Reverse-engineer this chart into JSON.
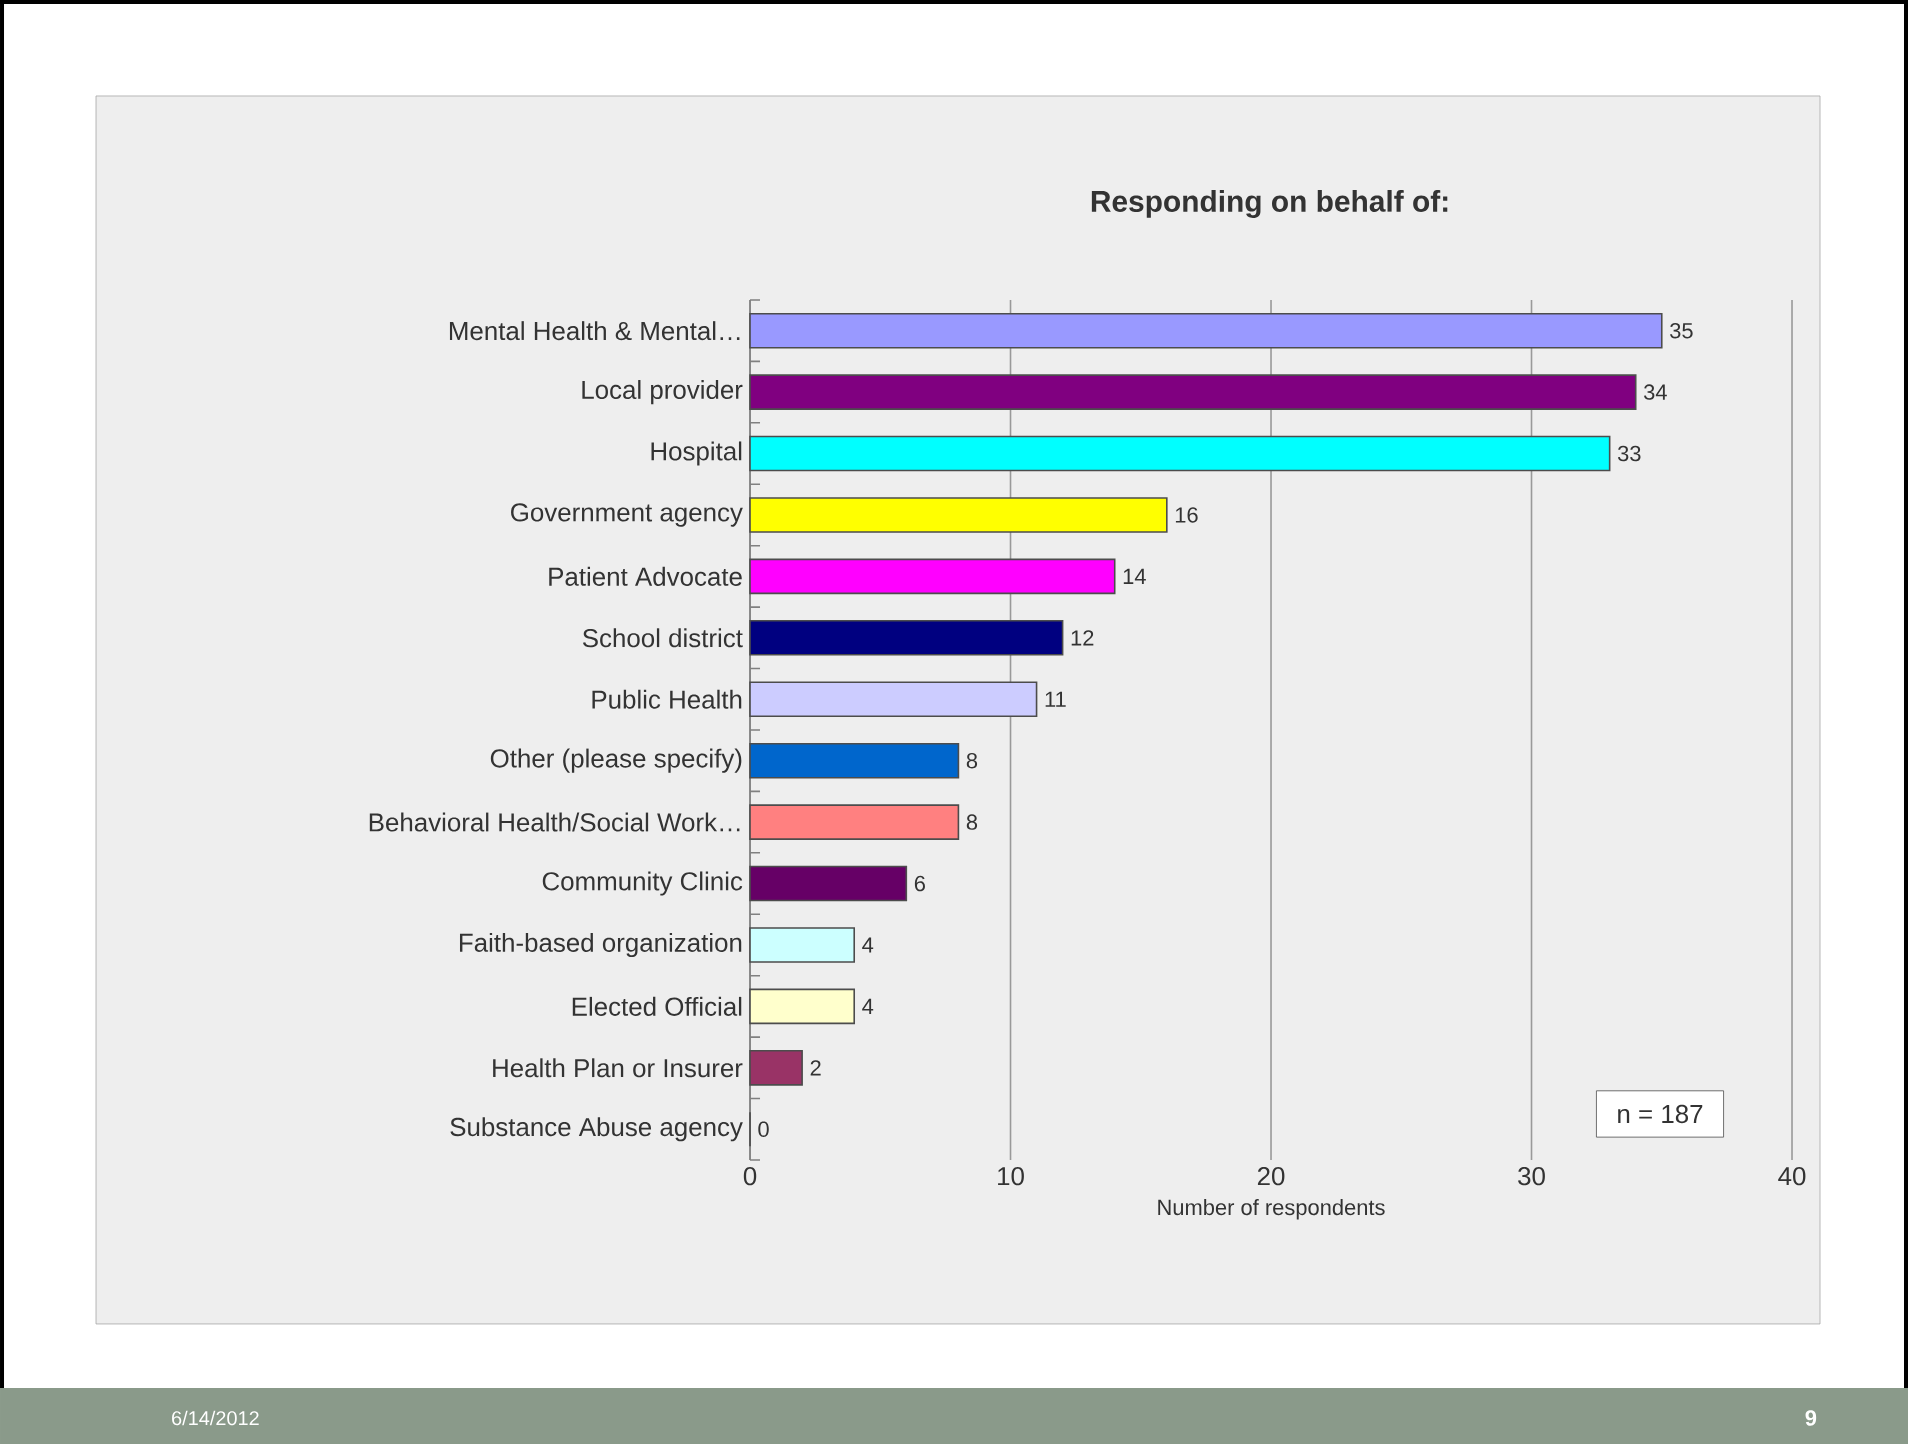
{
  "chart_data": {
    "type": "bar",
    "orientation": "horizontal",
    "title": "Responding on behalf of:",
    "xlabel": "Number of respondents",
    "categories": [
      "Mental Health & Mental…",
      "Local provider",
      "Hospital",
      "Government agency",
      "Patient Advocate",
      "School district",
      "Public Health",
      "Other (please specify)",
      "Behavioral Health/Social Work…",
      "Community Clinic",
      "Faith-based organization",
      "Elected Official",
      "Health Plan or Insurer",
      "Substance Abuse agency"
    ],
    "values": [
      35,
      34,
      33,
      16,
      14,
      12,
      11,
      8,
      8,
      6,
      4,
      4,
      2,
      0
    ],
    "colors": [
      "#9999ff",
      "#800080",
      "#00ffff",
      "#ffff00",
      "#ff00ff",
      "#000080",
      "#ccccff",
      "#0066cc",
      "#ff8080",
      "#660066",
      "#ccffff",
      "#ffffcc",
      "#993366",
      "#99ccff"
    ],
    "xlim": [
      0,
      40
    ],
    "xticks": [
      0,
      10,
      20,
      30,
      40
    ],
    "grid": "x",
    "data_labels": true,
    "annotations": [
      "n = 187",
      "6/14/2012",
      "9"
    ]
  }
}
